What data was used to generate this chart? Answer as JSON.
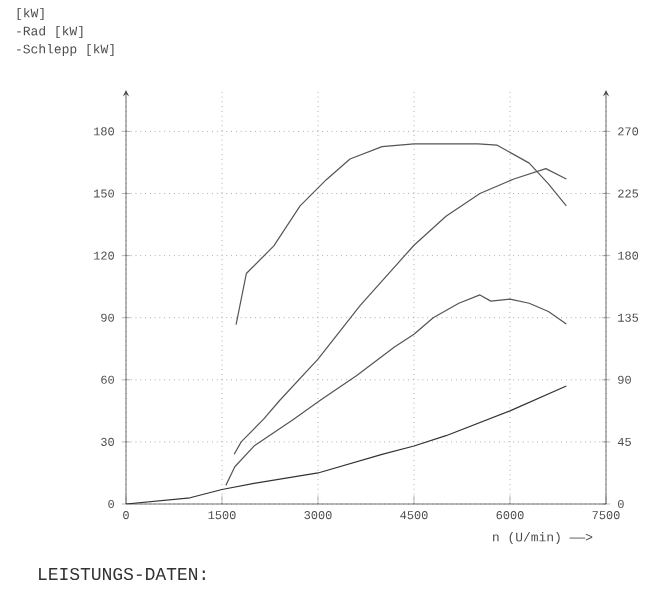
{
  "chart_data": {
    "type": "line",
    "xlabel": "n (U/min) ——>",
    "annotations": [
      "[kW]",
      "-Rad [kW]",
      "-Schlepp [kW]",
      "LEISTUNGS-DATEN:"
    ],
    "xlim": [
      0,
      7500
    ],
    "xticks": [
      0,
      1500,
      3000,
      4500,
      6000,
      7500
    ],
    "ylim": [
      0,
      200
    ],
    "yticks": [
      0,
      30,
      60,
      90,
      120,
      150,
      180
    ],
    "y2lim": [
      0,
      300
    ],
    "y2ticks": [
      0,
      45,
      90,
      135,
      180,
      225,
      270
    ],
    "grid": true,
    "line_style": "solid",
    "marker": "none",
    "series": [
      {
        "color": "#555555",
        "axis": "y2",
        "x": [
          1720,
          1880,
          2310,
          2720,
          3130,
          3500,
          4000,
          4500,
          5000,
          5500,
          5800,
          6300,
          6600,
          6880
        ],
        "values": [
          130,
          167,
          187,
          216,
          235,
          250,
          259,
          261,
          261,
          261,
          260,
          247,
          232,
          216
        ]
      },
      {
        "color": "#555555",
        "x": [
          1690,
          1800,
          2150,
          2400,
          3000,
          3660,
          4500,
          5000,
          5530,
          6060,
          6560,
          6880
        ],
        "values": [
          24,
          30,
          41,
          50,
          70,
          96,
          125,
          139,
          150,
          157,
          162,
          157
        ]
      },
      {
        "color": "#555555",
        "x": [
          1560,
          1700,
          2000,
          2620,
          3030,
          3600,
          4200,
          4500,
          4800,
          5200,
          5530,
          5700,
          6000,
          6300,
          6600,
          6880
        ],
        "values": [
          9,
          18,
          28,
          41,
          50,
          62,
          76,
          82,
          90,
          97,
          101,
          98,
          99,
          97,
          93,
          87
        ]
      },
      {
        "color": "#333333",
        "x": [
          0,
          1000,
          1500,
          2000,
          3000,
          4000,
          4500,
          5000,
          6000,
          6880
        ],
        "values": [
          0,
          3,
          7,
          10,
          15,
          24,
          28,
          33,
          45,
          57
        ]
      }
    ]
  }
}
